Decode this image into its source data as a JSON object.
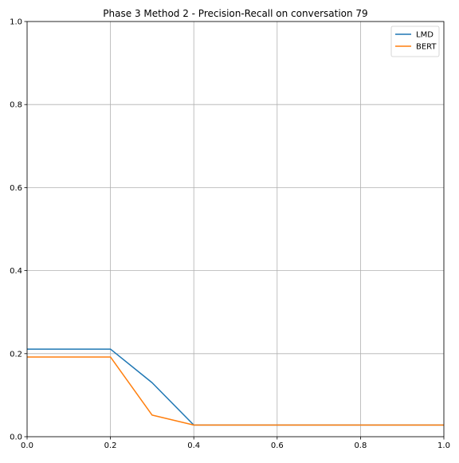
{
  "chart_data": {
    "type": "line",
    "title": "Phase 3 Method 2 - Precision-Recall on conversation 79",
    "xlabel": "",
    "ylabel": "",
    "xlim": [
      0,
      1
    ],
    "ylim": [
      0,
      1
    ],
    "grid": true,
    "legend_position": "top-right",
    "x_ticks": [
      "0.0",
      "0.2",
      "0.4",
      "0.6",
      "0.8",
      "1.0"
    ],
    "y_ticks": [
      "0.0",
      "0.2",
      "0.4",
      "0.6",
      "0.8",
      "1.0"
    ],
    "x": [
      0.0,
      0.1,
      0.2,
      0.3,
      0.4,
      0.5,
      0.6,
      0.7,
      0.8,
      0.9,
      1.0
    ],
    "series": [
      {
        "name": "LMD",
        "color": "#1f77b4",
        "values": [
          0.211,
          0.211,
          0.211,
          0.13,
          0.028,
          0.028,
          0.028,
          0.028,
          0.028,
          0.028,
          0.028
        ]
      },
      {
        "name": "BERT",
        "color": "#ff7f0e",
        "values": [
          0.192,
          0.192,
          0.192,
          0.052,
          0.028,
          0.028,
          0.028,
          0.028,
          0.028,
          0.028,
          0.028
        ]
      }
    ]
  }
}
